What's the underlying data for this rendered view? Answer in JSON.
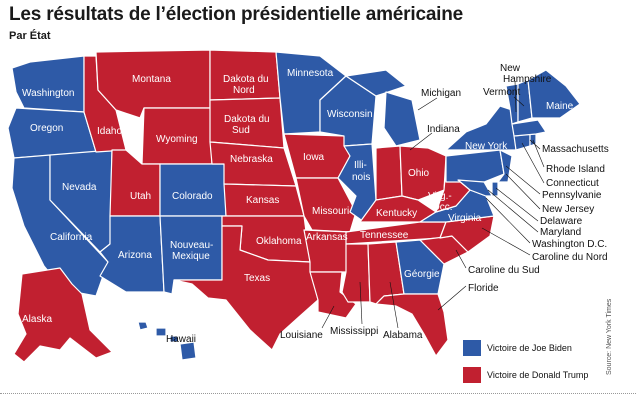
{
  "title": "Les résultats de l’élection présidentielle américaine",
  "subtitle": "Par État",
  "colors": {
    "biden": "#2e5aa7",
    "trump": "#c12030",
    "border": "#ffffff"
  },
  "legend": {
    "biden": "Victoire de Joe Biden",
    "trump": "Victoire de Donald Trump"
  },
  "source": "Source: New York Times",
  "states": {
    "washington": "Washington",
    "oregon": "Oregon",
    "california": "California",
    "nevada": "Nevada",
    "idaho": "Idaho",
    "montana": "Montana",
    "wyoming": "Wyoming",
    "utah": "Utah",
    "arizona": "Arizona",
    "colorado": "Colorado",
    "new_mexico": "Nouveau-Mexique",
    "north_dakota": "Dakota du Nord",
    "south_dakota": "Dakota du Sud",
    "nebraska": "Nebraska",
    "kansas": "Kansas",
    "oklahoma": "Oklahoma",
    "texas": "Texas",
    "minnesota": "Minnesota",
    "iowa": "Iowa",
    "missouri": "Missouri",
    "arkansas": "Arkansas",
    "louisiane": "Louisiane",
    "wisconsin": "Wisconsin",
    "illinois": "Illinois",
    "michigan": "Michigan",
    "indiana": "Indiana",
    "ohio": "Ohio",
    "kentucky": "Kentucky",
    "tennessee": "Tennessee",
    "mississippi": "Mississippi",
    "alabama": "Alabama",
    "georgie": "Géorgie",
    "floride": "Floride",
    "caroline_sud": "Caroline du Sud",
    "caroline_nord": "Caroline du Nord",
    "virginia": "Virginia",
    "virg_occ_1": "Virg.-",
    "virg_occ_2": "Occ.",
    "pennsylvanie": "Pennsylvanie",
    "new_york": "New York",
    "vermont": "Vermont",
    "new_hampshire_1": "New",
    "new_hampshire_2": "Hampshire",
    "maine": "Maine",
    "massachusetts": "Massachusetts",
    "rhode_island": "Rhode Island",
    "connecticut_1": "Connecticut",
    "new_jersey": "New Jersey",
    "delaware": "Delaware",
    "maryland": "Maryland",
    "washington_dc": "Washington D.C.",
    "alaska": "Alaska",
    "hawaii": "Hawaii"
  }
}
